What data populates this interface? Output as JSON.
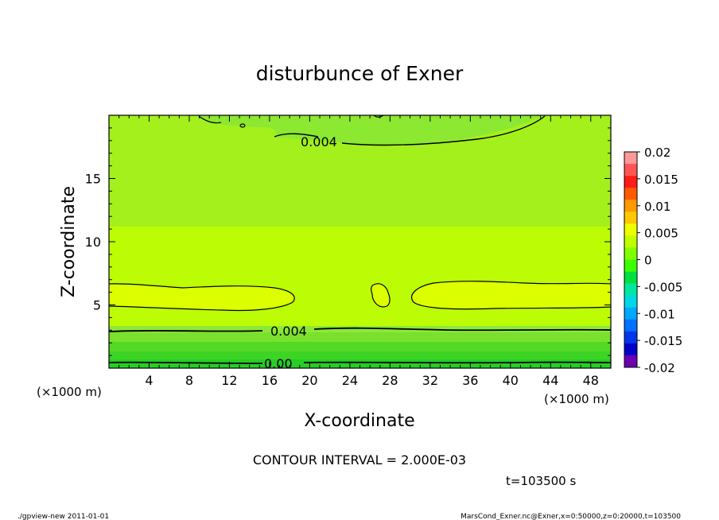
{
  "chart_data": {
    "type": "contour",
    "title": "disturbunce of Exner",
    "xlabel": "X-coordinate",
    "ylabel": "Z-coordinate",
    "x_unit": "(×1000 m)",
    "z_unit": "(×1000 m)",
    "xlim": [
      0,
      50
    ],
    "ylim": [
      0,
      20
    ],
    "x_ticks": [
      4,
      8,
      12,
      16,
      20,
      24,
      28,
      32,
      36,
      40,
      44,
      48
    ],
    "y_ticks": [
      5,
      10,
      15
    ],
    "contour_interval_text": "CONTOUR INTERVAL = 2.000E-03",
    "time_text": "t=103500 s",
    "contour_labels": [
      "0.004",
      "0.004",
      "0.00"
    ],
    "colorbar": {
      "levels": [
        "0.02",
        "0.015",
        "0.01",
        "0.005",
        "0",
        "-0.005",
        "-0.01",
        "-0.015",
        "-0.02"
      ],
      "bin_colors": [
        "#ff9999",
        "#ff5555",
        "#ff1a1a",
        "#ff5a00",
        "#ff9a00",
        "#ffc800",
        "#eeff00",
        "#c0ff00",
        "#7fff00",
        "#3dff00",
        "#00e040",
        "#00e8a0",
        "#00d8e8",
        "#00a8ff",
        "#0070ff",
        "#0036e8",
        "#0000c8",
        "#6a00b0"
      ]
    },
    "field_colors": {
      "upper": "#a4f01c",
      "middle": "#bcfd05",
      "bands": [
        "#8de838",
        "#7ae02e",
        "#52da24",
        "#3ed426",
        "#26ce26"
      ],
      "blobs": "#dcff00",
      "top_low": "#8ce830"
    }
  },
  "footer": {
    "left": "./gpview-new   2011-01-01",
    "right": "MarsCond_Exner.nc@Exner,x=0:50000,z=0:20000,t=103500"
  }
}
